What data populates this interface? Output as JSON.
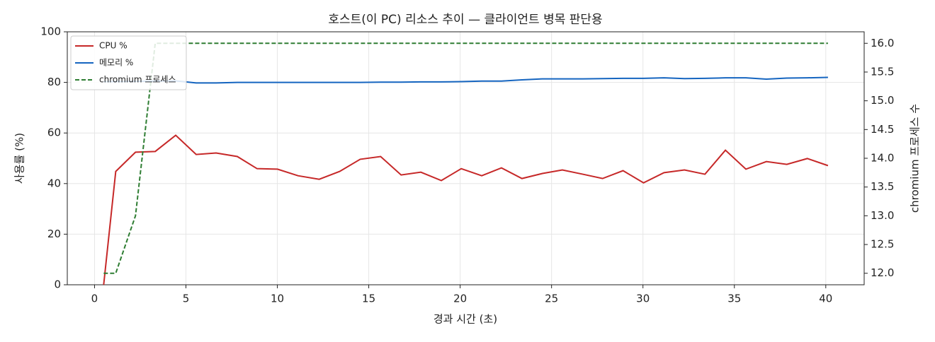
{
  "chart_data": {
    "type": "line",
    "title": "호스트(이 PC) 리소스 추이 — 클라이언트 병목 판단용",
    "xlabel": "경과 시간 (초)",
    "ylabel": "사용률 (%)",
    "y2label": "chromium 프로세스 수",
    "x": [
      0.5,
      1.16,
      2.24,
      3.32,
      4.44,
      5.56,
      6.65,
      7.81,
      8.89,
      10.01,
      11.13,
      12.29,
      13.41,
      14.53,
      15.65,
      16.77,
      17.85,
      18.97,
      20.06,
      21.18,
      22.26,
      23.38,
      24.5,
      25.59,
      26.71,
      27.79,
      28.91,
      30.03,
      31.15,
      32.27,
      33.39,
      34.51,
      35.63,
      36.75,
      37.87,
      38.99,
      40.12
    ],
    "series": [
      {
        "name": "CPU %",
        "color": "#c62828",
        "style": "solid",
        "axis": "y",
        "values": [
          0,
          44.8,
          52.4,
          52.7,
          59.1,
          51.5,
          52.1,
          50.7,
          45.9,
          45.7,
          43.1,
          41.7,
          44.8,
          49.6,
          50.7,
          43.4,
          44.5,
          41.2,
          45.9,
          43.1,
          46.2,
          42.0,
          44.0,
          45.4,
          43.7,
          42.0,
          45.1,
          40.3,
          44.3,
          45.4,
          43.7,
          53.2,
          45.7,
          48.7,
          47.6,
          49.9,
          47.1
        ]
      },
      {
        "name": "메모리 %",
        "color": "#1565c0",
        "style": "solid",
        "axis": "y",
        "values": [
          80.3,
          80.3,
          80.4,
          80.5,
          80.6,
          79.8,
          79.8,
          80.0,
          80.0,
          80.0,
          80.0,
          80.0,
          80.0,
          80.0,
          80.1,
          80.1,
          80.2,
          80.2,
          80.3,
          80.5,
          80.5,
          81.0,
          81.4,
          81.4,
          81.4,
          81.5,
          81.6,
          81.6,
          81.8,
          81.5,
          81.6,
          81.8,
          81.8,
          81.3,
          81.7,
          81.8,
          82.0
        ]
      },
      {
        "name": "chromium 프로세스",
        "color": "#2e7d32",
        "style": "dashed",
        "axis": "y2",
        "values": [
          12,
          12,
          13,
          16,
          16,
          16,
          16,
          16,
          16,
          16,
          16,
          16,
          16,
          16,
          16,
          16,
          16,
          16,
          16,
          16,
          16,
          16,
          16,
          16,
          16,
          16,
          16,
          16,
          16,
          16,
          16,
          16,
          16,
          16,
          16,
          16,
          16
        ]
      }
    ],
    "xlim": [
      -1.49,
      42.1
    ],
    "xticks": [
      0,
      5,
      10,
      15,
      20,
      25,
      30,
      35,
      40
    ],
    "ylim": [
      0,
      100
    ],
    "yticks": [
      0,
      20,
      40,
      60,
      80,
      100
    ],
    "y2lim": [
      11.8,
      16.2
    ],
    "y2ticks": [
      {
        "value": 12,
        "label": "12.0"
      },
      12.5,
      {
        "value": 13,
        "label": "13.0"
      },
      13.5,
      {
        "value": 14,
        "label": "14.0"
      },
      14.5,
      {
        "value": 15,
        "label": "15.0"
      },
      15.5,
      {
        "value": 16,
        "label": "16.0"
      }
    ],
    "grid": true,
    "legend": "upper-left"
  }
}
